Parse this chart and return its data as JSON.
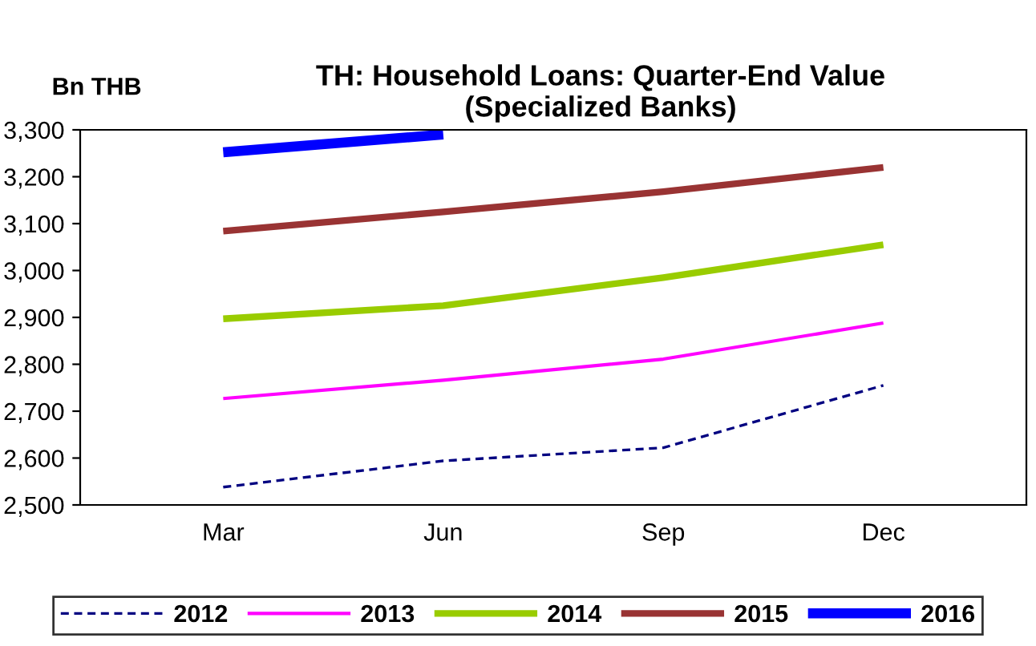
{
  "chart_data": {
    "type": "line",
    "title": "TH: Household Loans: Quarter-End Value\n(Specialized Banks)",
    "ylabel": "Bn THB",
    "categories": [
      "Mar",
      "Jun",
      "Sep",
      "Dec"
    ],
    "series": [
      {
        "name": "2012",
        "color": "#000080",
        "values": [
          2538,
          2594,
          2622,
          2755
        ],
        "line_style": "dashed"
      },
      {
        "name": "2013",
        "color": "#ff00ff",
        "values": [
          2727,
          2766,
          2811,
          2888
        ]
      },
      {
        "name": "2014",
        "color": "#99cc00",
        "values": [
          2897,
          2925,
          2985,
          3055
        ]
      },
      {
        "name": "2015",
        "color": "#993333",
        "values": [
          3084,
          3125,
          3168,
          3220
        ]
      },
      {
        "name": "2016",
        "color": "#0000ff",
        "values": [
          3252,
          3290,
          null,
          null
        ]
      }
    ],
    "ylim": [
      2500,
      3300
    ],
    "yticks": [
      {
        "value": 2500,
        "label": "2,500"
      },
      {
        "value": 2600,
        "label": "2,600"
      },
      {
        "value": 2700,
        "label": "2,700"
      },
      {
        "value": 2800,
        "label": "2,800"
      },
      {
        "value": 2900,
        "label": "2,900"
      },
      {
        "value": 3000,
        "label": "3,000"
      },
      {
        "value": 3100,
        "label": "3,100"
      },
      {
        "value": 3200,
        "label": "3,200"
      },
      {
        "value": 3300,
        "label": "3,300"
      }
    ],
    "grid": false,
    "legend": "bottom",
    "marker": "none"
  }
}
